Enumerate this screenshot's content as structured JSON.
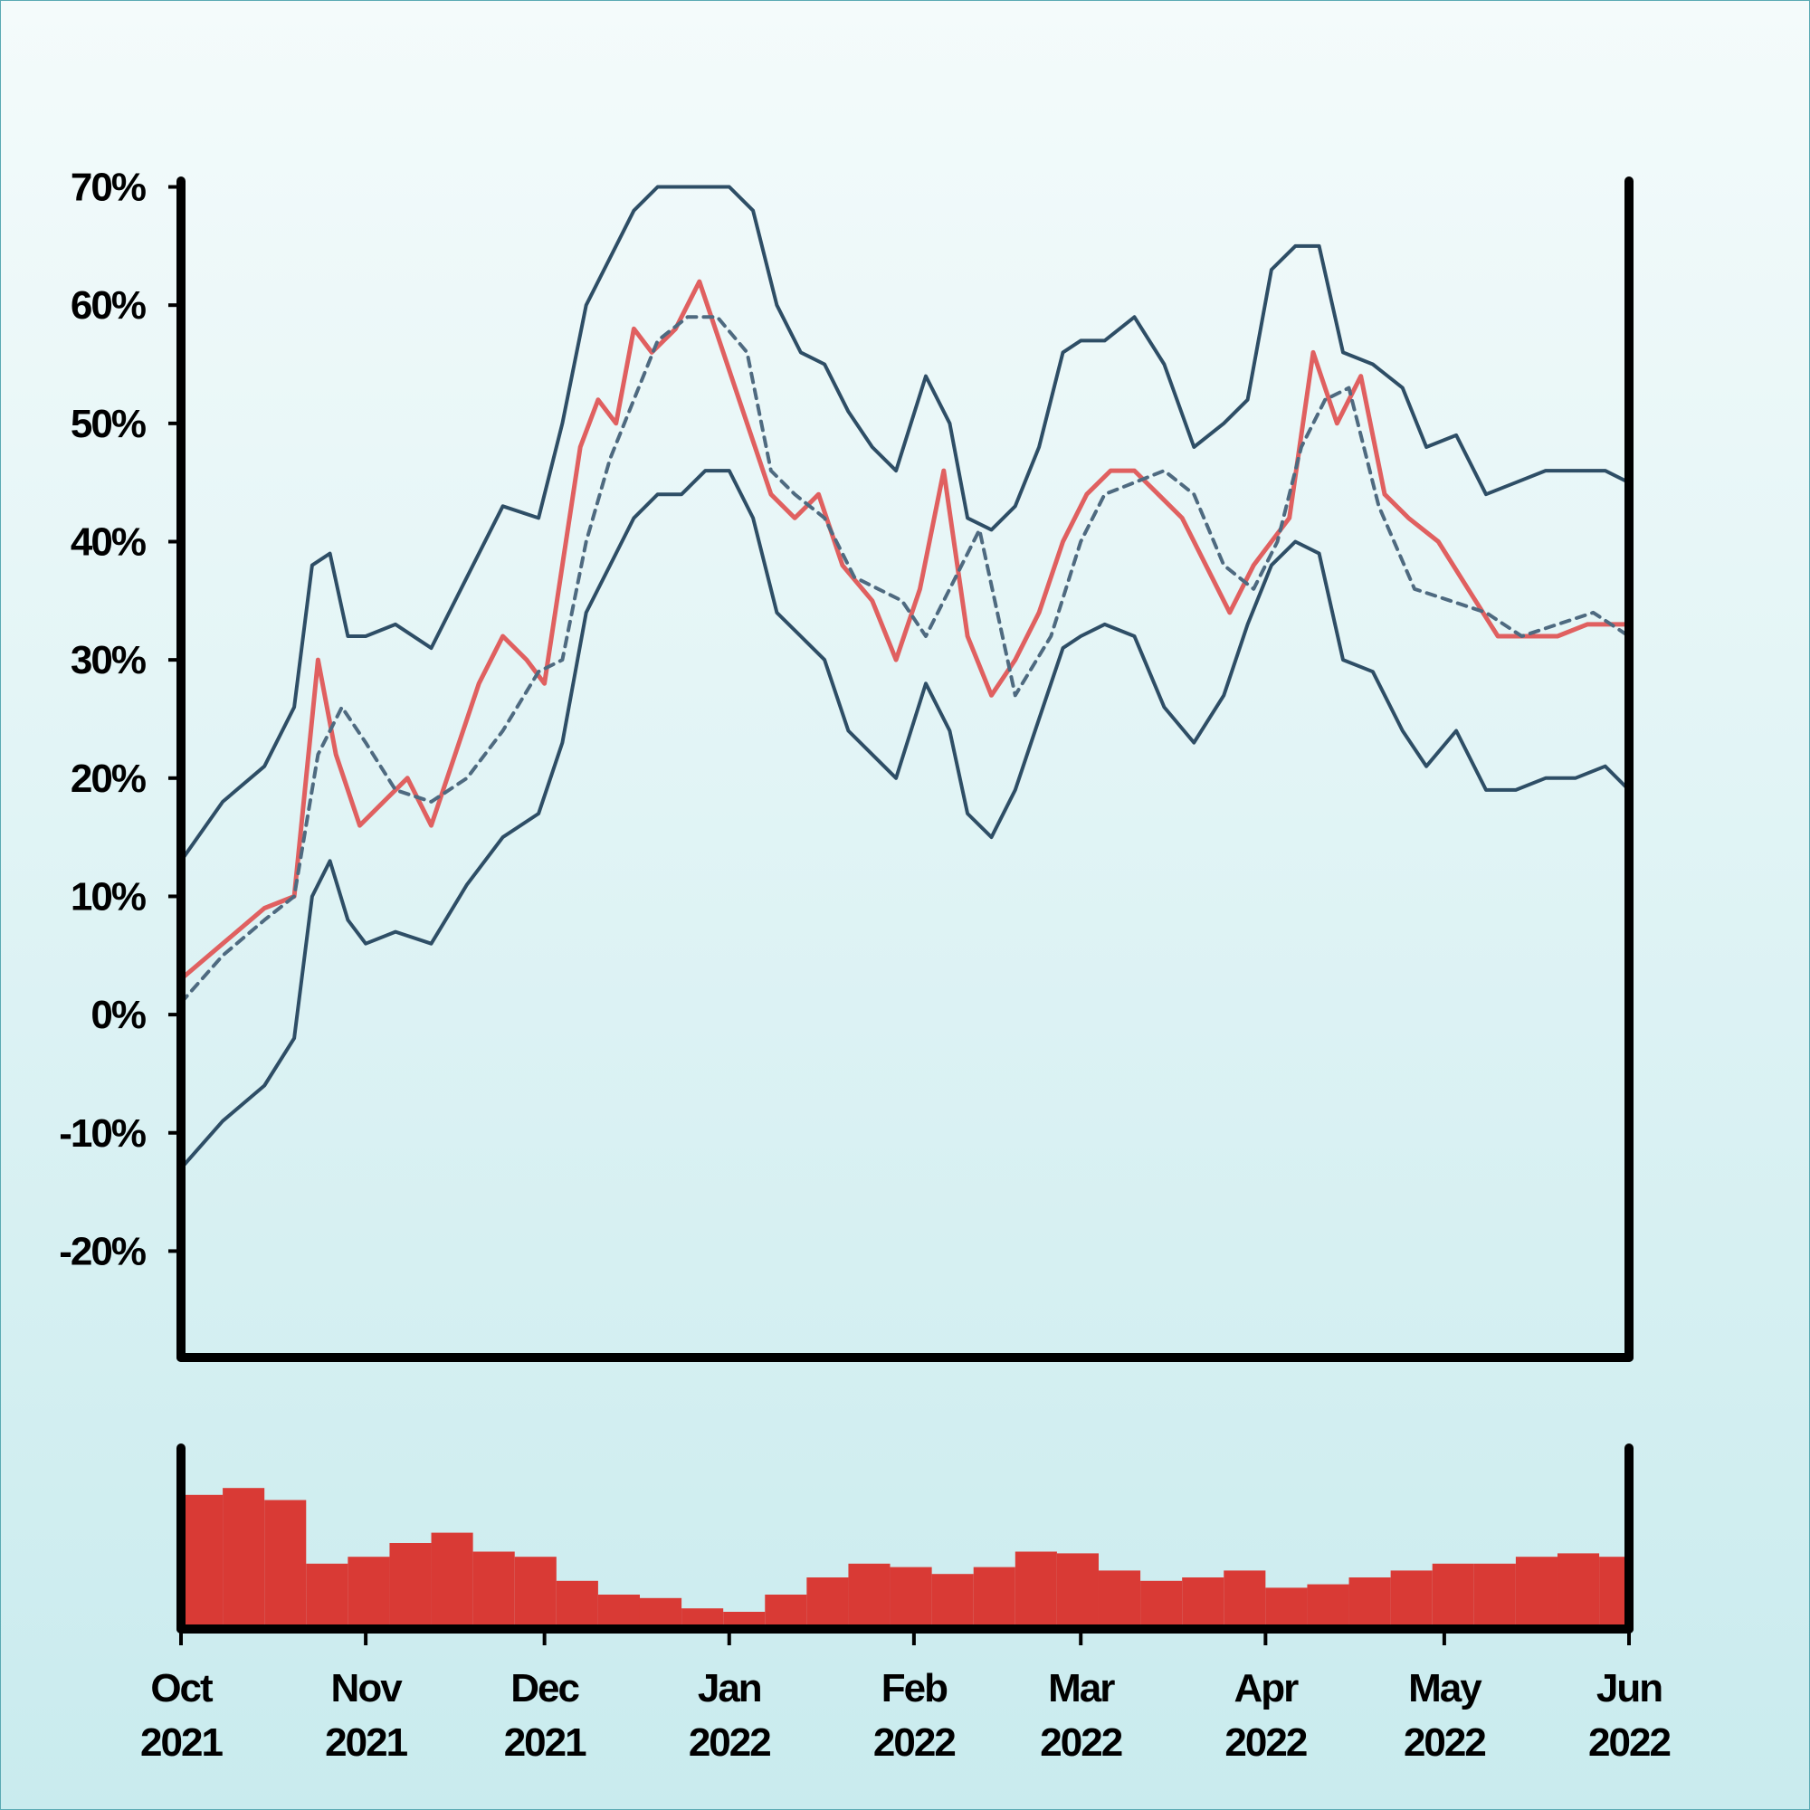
{
  "colors": {
    "price": "#e06060",
    "band": "#2e4e66",
    "midline": "#4e6a80",
    "volume": "#d93a35",
    "axis": "#000000"
  },
  "chart_data": [
    {
      "type": "line",
      "panel": "price",
      "title": "",
      "xlabel": "",
      "ylabel": "",
      "ylim": [
        -29,
        70.5
      ],
      "xlim": [
        "2021-10-01",
        "2022-06-01"
      ],
      "grid": false,
      "legend": "none",
      "yticks": [
        -20,
        -10,
        0,
        10,
        20,
        30,
        40,
        50,
        60,
        70
      ],
      "ytick_labels": [
        "-20%",
        "-10%",
        "0%",
        "10%",
        "20%",
        "30%",
        "40%",
        "50%",
        "60%",
        "70%"
      ],
      "series": [
        {
          "style": "solid-red",
          "x": [
            "2021-10-01",
            "2021-10-08",
            "2021-10-15",
            "2021-10-20",
            "2021-10-24",
            "2021-10-27",
            "2021-10-31",
            "2021-11-04",
            "2021-11-08",
            "2021-11-12",
            "2021-11-16",
            "2021-11-20",
            "2021-11-24",
            "2021-11-28",
            "2021-12-01",
            "2021-12-04",
            "2021-12-07",
            "2021-12-10",
            "2021-12-13",
            "2021-12-16",
            "2021-12-19",
            "2021-12-23",
            "2021-12-27",
            "2021-12-31",
            "2022-01-04",
            "2022-01-08",
            "2022-01-12",
            "2022-01-16",
            "2022-01-20",
            "2022-01-25",
            "2022-01-29",
            "2022-02-02",
            "2022-02-06",
            "2022-02-10",
            "2022-02-14",
            "2022-02-18",
            "2022-02-22",
            "2022-02-26",
            "2022-03-02",
            "2022-03-06",
            "2022-03-10",
            "2022-03-14",
            "2022-03-18",
            "2022-03-22",
            "2022-03-26",
            "2022-03-30",
            "2022-04-02",
            "2022-04-05",
            "2022-04-09",
            "2022-04-13",
            "2022-04-17",
            "2022-04-21",
            "2022-04-25",
            "2022-04-30",
            "2022-05-05",
            "2022-05-10",
            "2022-05-15",
            "2022-05-20",
            "2022-05-25",
            "2022-05-30",
            "2022-06-01"
          ],
          "values": [
            3,
            6,
            9,
            10,
            30,
            22,
            16,
            18,
            20,
            16,
            22,
            28,
            32,
            30,
            28,
            38,
            48,
            52,
            50,
            58,
            56,
            58,
            62,
            56,
            50,
            44,
            42,
            44,
            38,
            35,
            30,
            36,
            46,
            32,
            27,
            30,
            34,
            40,
            44,
            46,
            46,
            44,
            42,
            38,
            34,
            38,
            40,
            42,
            56,
            50,
            54,
            44,
            42,
            40,
            36,
            32,
            32,
            32,
            33,
            33,
            33
          ]
        },
        {
          "style": "dashed-midline",
          "x": [
            "2021-10-01",
            "2021-10-08",
            "2021-10-15",
            "2021-10-20",
            "2021-10-24",
            "2021-10-28",
            "2021-11-01",
            "2021-11-06",
            "2021-11-12",
            "2021-11-18",
            "2021-11-24",
            "2021-11-30",
            "2021-12-04",
            "2021-12-08",
            "2021-12-12",
            "2021-12-16",
            "2021-12-20",
            "2021-12-25",
            "2021-12-30",
            "2022-01-04",
            "2022-01-08",
            "2022-01-12",
            "2022-01-17",
            "2022-01-22",
            "2022-01-26",
            "2022-01-30",
            "2022-02-03",
            "2022-02-07",
            "2022-02-12",
            "2022-02-18",
            "2022-02-24",
            "2022-03-01",
            "2022-03-05",
            "2022-03-10",
            "2022-03-15",
            "2022-03-20",
            "2022-03-25",
            "2022-03-30",
            "2022-04-03",
            "2022-04-07",
            "2022-04-11",
            "2022-04-15",
            "2022-04-20",
            "2022-04-26",
            "2022-05-02",
            "2022-05-08",
            "2022-05-14",
            "2022-05-20",
            "2022-05-26",
            "2022-06-01"
          ],
          "values": [
            1,
            5,
            8,
            10,
            22,
            26,
            23,
            19,
            18,
            20,
            24,
            29,
            30,
            40,
            47,
            52,
            57,
            59,
            59,
            56,
            46,
            44,
            42,
            37,
            36,
            35,
            32,
            36,
            41,
            27,
            32,
            40,
            44,
            45,
            46,
            44,
            38,
            36,
            40,
            48,
            52,
            53,
            43,
            36,
            35,
            34,
            32,
            33,
            34,
            32
          ]
        },
        {
          "style": "solid-band-upper",
          "x": [
            "2021-10-01",
            "2021-10-08",
            "2021-10-15",
            "2021-10-20",
            "2021-10-23",
            "2021-10-26",
            "2021-10-29",
            "2021-11-01",
            "2021-11-06",
            "2021-11-12",
            "2021-11-18",
            "2021-11-24",
            "2021-11-30",
            "2021-12-04",
            "2021-12-08",
            "2021-12-12",
            "2021-12-16",
            "2021-12-20",
            "2021-12-24",
            "2021-12-28",
            "2022-01-01",
            "2022-01-05",
            "2022-01-09",
            "2022-01-13",
            "2022-01-17",
            "2022-01-21",
            "2022-01-25",
            "2022-01-29",
            "2022-02-03",
            "2022-02-07",
            "2022-02-10",
            "2022-02-14",
            "2022-02-18",
            "2022-02-22",
            "2022-02-26",
            "2022-03-01",
            "2022-03-05",
            "2022-03-10",
            "2022-03-15",
            "2022-03-20",
            "2022-03-25",
            "2022-03-29",
            "2022-04-02",
            "2022-04-06",
            "2022-04-10",
            "2022-04-14",
            "2022-04-19",
            "2022-04-24",
            "2022-04-28",
            "2022-05-03",
            "2022-05-08",
            "2022-05-13",
            "2022-05-18",
            "2022-05-23",
            "2022-05-28",
            "2022-06-01"
          ],
          "values": [
            13,
            18,
            21,
            26,
            38,
            39,
            32,
            32,
            33,
            31,
            37,
            43,
            42,
            50,
            60,
            64,
            68,
            70,
            70,
            70,
            70,
            68,
            60,
            56,
            55,
            51,
            48,
            46,
            54,
            50,
            42,
            41,
            43,
            48,
            56,
            57,
            57,
            59,
            55,
            48,
            50,
            52,
            63,
            65,
            65,
            56,
            55,
            53,
            48,
            49,
            44,
            45,
            46,
            46,
            46,
            45
          ]
        },
        {
          "style": "solid-band-lower",
          "x": [
            "2021-10-01",
            "2021-10-08",
            "2021-10-15",
            "2021-10-20",
            "2021-10-23",
            "2021-10-26",
            "2021-10-29",
            "2021-11-01",
            "2021-11-06",
            "2021-11-12",
            "2021-11-18",
            "2021-11-24",
            "2021-11-30",
            "2021-12-04",
            "2021-12-08",
            "2021-12-12",
            "2021-12-16",
            "2021-12-20",
            "2021-12-24",
            "2021-12-28",
            "2022-01-01",
            "2022-01-05",
            "2022-01-09",
            "2022-01-13",
            "2022-01-17",
            "2022-01-21",
            "2022-01-25",
            "2022-01-29",
            "2022-02-03",
            "2022-02-07",
            "2022-02-10",
            "2022-02-14",
            "2022-02-18",
            "2022-02-22",
            "2022-02-26",
            "2022-03-01",
            "2022-03-05",
            "2022-03-10",
            "2022-03-15",
            "2022-03-20",
            "2022-03-25",
            "2022-03-29",
            "2022-04-02",
            "2022-04-06",
            "2022-04-10",
            "2022-04-14",
            "2022-04-19",
            "2022-04-24",
            "2022-04-28",
            "2022-05-03",
            "2022-05-08",
            "2022-05-13",
            "2022-05-18",
            "2022-05-23",
            "2022-05-28",
            "2022-06-01"
          ],
          "values": [
            -13,
            -9,
            -6,
            -2,
            10,
            13,
            8,
            6,
            7,
            6,
            11,
            15,
            17,
            23,
            34,
            38,
            42,
            44,
            44,
            46,
            46,
            42,
            34,
            32,
            30,
            24,
            22,
            20,
            28,
            24,
            17,
            15,
            19,
            25,
            31,
            32,
            33,
            32,
            26,
            23,
            27,
            33,
            38,
            40,
            39,
            30,
            29,
            24,
            21,
            24,
            19,
            19,
            20,
            20,
            21,
            19
          ]
        }
      ]
    },
    {
      "type": "bar",
      "panel": "volume",
      "title": "",
      "xlabel": "",
      "ylabel": "",
      "ylim": [
        0,
        1
      ],
      "grid": false,
      "x": [
        "2021-10-01",
        "2021-10-08",
        "2021-10-15",
        "2021-10-22",
        "2021-10-29",
        "2021-11-05",
        "2021-11-12",
        "2021-11-19",
        "2021-11-26",
        "2021-12-03",
        "2021-12-10",
        "2021-12-17",
        "2021-12-24",
        "2021-12-31",
        "2022-01-07",
        "2022-01-14",
        "2022-01-21",
        "2022-01-28",
        "2022-02-04",
        "2022-02-11",
        "2022-02-18",
        "2022-02-25",
        "2022-03-04",
        "2022-03-11",
        "2022-03-18",
        "2022-03-25",
        "2022-04-01",
        "2022-04-08",
        "2022-04-15",
        "2022-04-22",
        "2022-04-29",
        "2022-05-06",
        "2022-05-13",
        "2022-05-20",
        "2022-05-27"
      ],
      "values": [
        0.78,
        0.82,
        0.75,
        0.38,
        0.42,
        0.5,
        0.56,
        0.45,
        0.42,
        0.28,
        0.2,
        0.18,
        0.12,
        0.1,
        0.2,
        0.3,
        0.38,
        0.36,
        0.32,
        0.36,
        0.45,
        0.44,
        0.34,
        0.28,
        0.3,
        0.34,
        0.24,
        0.26,
        0.3,
        0.34,
        0.38,
        0.38,
        0.42,
        0.44,
        0.42
      ]
    }
  ],
  "x_axis": {
    "ticks": [
      {
        "date": "2021-10-01",
        "month": "Oct",
        "year": "2021"
      },
      {
        "date": "2021-11-01",
        "month": "Nov",
        "year": "2021"
      },
      {
        "date": "2021-12-01",
        "month": "Dec",
        "year": "2021"
      },
      {
        "date": "2022-01-01",
        "month": "Jan",
        "year": "2022"
      },
      {
        "date": "2022-02-01",
        "month": "Feb",
        "year": "2022"
      },
      {
        "date": "2022-03-01",
        "month": "Mar",
        "year": "2022"
      },
      {
        "date": "2022-04-01",
        "month": "Apr",
        "year": "2022"
      },
      {
        "date": "2022-05-01",
        "month": "May",
        "year": "2022"
      },
      {
        "date": "2022-06-01",
        "month": "Jun",
        "year": "2022"
      }
    ]
  }
}
